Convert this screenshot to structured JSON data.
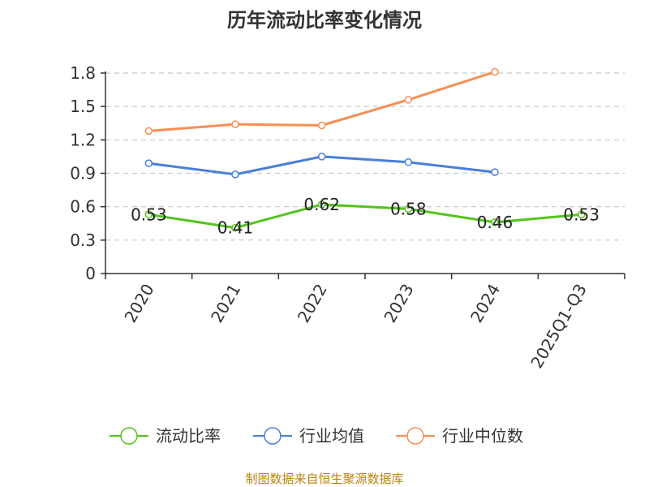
{
  "chart_data": {
    "type": "line",
    "title": "历年流动比率变化情况",
    "categories": [
      "2020",
      "2021",
      "2022",
      "2023",
      "2024",
      "2025Q1-Q3"
    ],
    "ylim": [
      0,
      1.8
    ],
    "yticks": [
      "0",
      "0.3",
      "0.6",
      "0.9",
      "1.2",
      "1.5",
      "1.8"
    ],
    "grid": true,
    "legend_position": "bottom",
    "series": [
      {
        "name": "流动比率",
        "color": "#52c41a",
        "values": [
          0.53,
          0.41,
          0.62,
          0.58,
          0.46,
          0.53
        ],
        "labels": [
          "0.53",
          "0.41",
          "0.62",
          "0.58",
          "0.46",
          "0.53"
        ]
      },
      {
        "name": "行业均值",
        "color": "#4a7fd8",
        "values": [
          0.99,
          0.89,
          1.05,
          1.0,
          0.91,
          null
        ]
      },
      {
        "name": "行业中位数",
        "color": "#f78e55",
        "values": [
          1.28,
          1.34,
          1.33,
          1.56,
          1.81,
          null
        ]
      }
    ],
    "source": "制图数据来自恒生聚源数据库"
  }
}
